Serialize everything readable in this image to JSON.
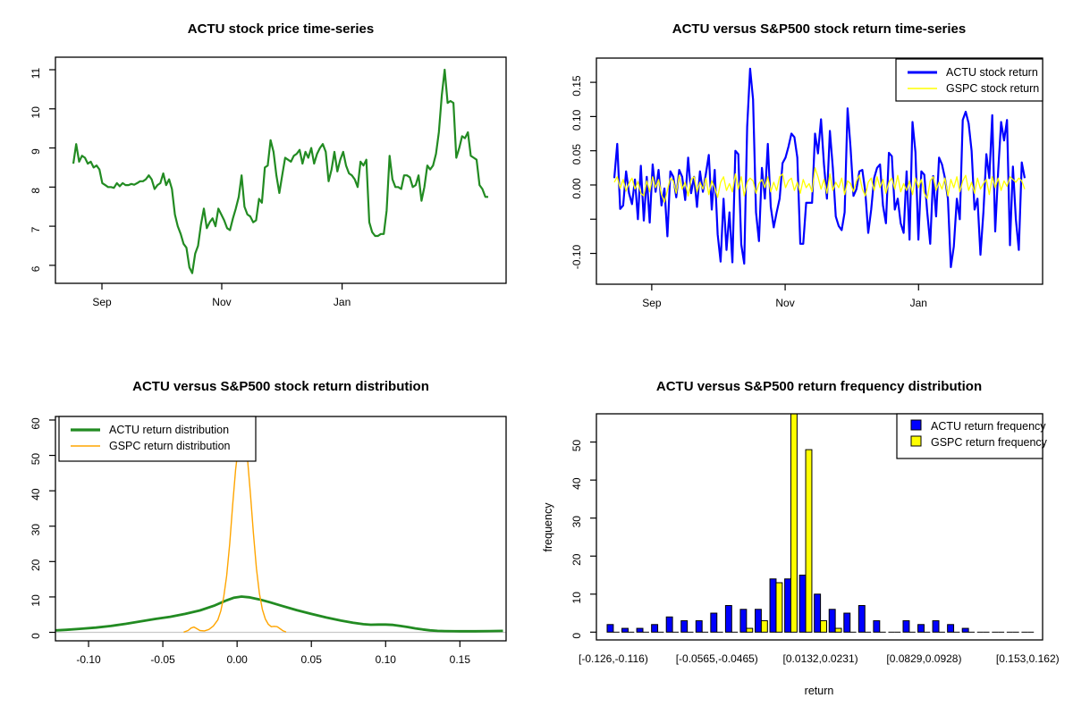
{
  "figure": {
    "background": "#FFFFFF"
  },
  "chart_data": [
    {
      "type": "line",
      "title": "ACTU stock price time-series",
      "x_tick_labels": [
        "Sep",
        "Nov",
        "Jan"
      ],
      "y_ticks": [
        6,
        7,
        8,
        9,
        10,
        11
      ],
      "ylim": [
        5.54,
        11.32
      ],
      "series": [
        {
          "name": "ACTU stock price",
          "color": "#228B22",
          "values": [
            8.6,
            9.1,
            8.65,
            8.8,
            8.75,
            8.6,
            8.65,
            8.5,
            8.55,
            8.45,
            8.1,
            8.05,
            8.0,
            8.0,
            7.98,
            8.1,
            8.02,
            8.1,
            8.05,
            8.05,
            8.08,
            8.06,
            8.1,
            8.15,
            8.15,
            8.2,
            8.3,
            8.2,
            7.95,
            8.05,
            8.1,
            8.35,
            8.05,
            8.2,
            7.95,
            7.3,
            7.0,
            6.8,
            6.55,
            6.45,
            5.95,
            5.8,
            6.3,
            6.5,
            7.05,
            7.45,
            6.95,
            7.1,
            7.2,
            7.0,
            7.45,
            7.3,
            7.15,
            6.95,
            6.9,
            7.2,
            7.45,
            7.75,
            8.3,
            7.5,
            7.3,
            7.25,
            7.1,
            7.15,
            7.7,
            7.6,
            8.5,
            8.55,
            9.2,
            8.9,
            8.3,
            7.85,
            8.3,
            8.75,
            8.7,
            8.65,
            8.8,
            8.85,
            8.95,
            8.6,
            8.9,
            8.75,
            9.0,
            8.6,
            8.85,
            9.0,
            9.1,
            8.9,
            8.15,
            8.45,
            8.9,
            8.4,
            8.7,
            8.9,
            8.55,
            8.35,
            8.3,
            8.2,
            8.0,
            8.65,
            8.55,
            8.7,
            7.1,
            6.85,
            6.75,
            6.75,
            6.8,
            6.8,
            7.4,
            8.8,
            8.2,
            8.0,
            8.0,
            7.95,
            8.3,
            8.3,
            8.25,
            8.0,
            8.05,
            8.3,
            7.65,
            8.0,
            8.55,
            8.45,
            8.55,
            8.85,
            9.4,
            10.35,
            11.0,
            10.15,
            10.2,
            10.15,
            8.75,
            9.0,
            9.3,
            9.25,
            9.4,
            8.8,
            8.75,
            8.7,
            8.05,
            7.95,
            7.75,
            7.75
          ]
        }
      ]
    },
    {
      "type": "line",
      "title": "ACTU versus S&P500 stock return time-series",
      "x_tick_labels": [
        "Sep",
        "Nov",
        "Jan"
      ],
      "y_tick_values": [
        0.15,
        0.1,
        0.05,
        0.0,
        -0.05,
        -0.1
      ],
      "y_tick_labels": [
        "0.15",
        "0.10",
        "0.05",
        "0.00",
        "",
        "-0.10"
      ],
      "ylim": [
        -0.145,
        0.1854
      ],
      "legend_position": "topright",
      "series": [
        {
          "name": "ACTU stock return",
          "color": "#0000FF",
          "values": [
            0.01,
            0.06,
            -0.035,
            -0.03,
            0.02,
            -0.012,
            -0.028,
            0.008,
            -0.05,
            0.028,
            -0.052,
            0.012,
            -0.055,
            0.03,
            -0.01,
            0.022,
            -0.03,
            -0.005,
            -0.075,
            0.02,
            0.012,
            -0.018,
            0.022,
            0.012,
            -0.022,
            0.04,
            -0.012,
            0.012,
            -0.032,
            0.02,
            -0.01,
            0.016,
            0.044,
            -0.036,
            0.022,
            -0.072,
            -0.112,
            -0.02,
            -0.095,
            -0.04,
            -0.113,
            0.05,
            0.045,
            -0.087,
            -0.115,
            0.085,
            0.17,
            0.125,
            -0.04,
            -0.082,
            0.025,
            -0.02,
            0.06,
            -0.032,
            -0.062,
            -0.04,
            -0.02,
            0.032,
            0.04,
            0.056,
            0.075,
            0.07,
            0.04,
            -0.086,
            -0.086,
            -0.026,
            -0.026,
            -0.026,
            0.075,
            0.046,
            0.096,
            0.03,
            -0.02,
            0.079,
            0.025,
            -0.046,
            -0.06,
            -0.066,
            -0.04,
            0.112,
            0.055,
            -0.016,
            -0.006,
            0.02,
            0.022,
            -0.01,
            -0.07,
            -0.036,
            0.01,
            0.025,
            0.03,
            -0.03,
            -0.056,
            0.047,
            0.042,
            -0.036,
            -0.02,
            -0.056,
            -0.07,
            0.02,
            -0.08,
            0.092,
            0.048,
            -0.08,
            0.02,
            0.015,
            -0.04,
            -0.086,
            0.013,
            -0.046,
            0.04,
            0.03,
            0.01,
            -0.02,
            -0.12,
            -0.09,
            -0.02,
            -0.05,
            0.095,
            0.107,
            0.09,
            0.05,
            -0.036,
            -0.02,
            -0.102,
            -0.04,
            0.045,
            0.01,
            0.102,
            -0.068,
            0.02,
            0.092,
            0.065,
            0.095,
            -0.088,
            0.027,
            -0.05,
            -0.095,
            0.033,
            0.01
          ]
        },
        {
          "name": "GSPC stock return",
          "color": "#FFFF00",
          "values": [
            0.004,
            0.012,
            -0.005,
            0.008,
            -0.009,
            0.003,
            0.01,
            -0.006,
            0.005,
            -0.012,
            -0.016,
            0.006,
            -0.01,
            0.012,
            -0.004,
            0.008,
            -0.014,
            -0.025,
            -0.008,
            0.01,
            0.006,
            -0.012,
            0.014,
            -0.006,
            0.004,
            -0.016,
            0.008,
            0.012,
            -0.01,
            0.004,
            -0.006,
            0.01,
            -0.014,
            0.006,
            -0.004,
            -0.018,
            0.004,
            0.012,
            -0.008,
            0.002,
            -0.01,
            0.016,
            -0.006,
            0.012,
            -0.016,
            0.004,
            0.01,
            0.006,
            -0.012,
            0.002,
            0.008,
            -0.004,
            0.012,
            -0.01,
            0.004,
            -0.008,
            0.012,
            0.016,
            -0.004,
            0.006,
            0.01,
            -0.008,
            0.004,
            -0.012,
            0.008,
            -0.004,
            0.002,
            -0.01,
            0.025,
            0.012,
            -0.006,
            0.008,
            -0.012,
            0.016,
            -0.008,
            0.004,
            -0.004,
            0.01,
            -0.014,
            0.006,
            0.002,
            -0.01,
            0.006,
            0.014,
            -0.006,
            -0.016,
            0.004,
            0.01,
            -0.008,
            0.012,
            -0.004,
            0.008,
            -0.012,
            0.004,
            0.01,
            -0.006,
            0.014,
            -0.01,
            0.002,
            -0.008,
            0.006,
            -0.014,
            0.01,
            -0.004,
            0.008,
            -0.012,
            -0.02,
            0.006,
            0.012,
            -0.008,
            0.004,
            -0.006,
            0.01,
            -0.016,
            0.008,
            -0.004,
            0.012,
            -0.01,
            0.006,
            0.014,
            -0.008,
            0.004,
            -0.012,
            0.01,
            -0.006,
            0.002,
            0.008,
            -0.014,
            0.012,
            -0.004,
            0.01,
            -0.008,
            0.006,
            -0.002,
            0.012,
            0.008,
            0.004,
            0.01,
            0.006,
            -0.006
          ]
        }
      ]
    },
    {
      "type": "line",
      "title": "ACTU versus S&P500 stock return distribution",
      "x_tick_values": [
        -0.1,
        -0.05,
        0.0,
        0.05,
        0.1,
        0.15
      ],
      "x_tick_labels": [
        "-0.10",
        "-0.05",
        "0.00",
        "0.05",
        "0.10",
        "0.15"
      ],
      "y_ticks": [
        0,
        10,
        20,
        30,
        40,
        50,
        60
      ],
      "xlim": [
        -0.1223,
        0.1811
      ],
      "ylim": [
        -2.4,
        61.0
      ],
      "zero_line_color": "#C8C8C8",
      "legend_position": "topleft",
      "series": [
        {
          "name": "ACTU return distribution",
          "color": "#228B22",
          "points": [
            [
              -0.122,
              0.55
            ],
            [
              -0.115,
              0.7
            ],
            [
              -0.105,
              1.0
            ],
            [
              -0.095,
              1.35
            ],
            [
              -0.085,
              1.8
            ],
            [
              -0.075,
              2.4
            ],
            [
              -0.065,
              3.1
            ],
            [
              -0.055,
              3.8
            ],
            [
              -0.045,
              4.4
            ],
            [
              -0.035,
              5.2
            ],
            [
              -0.025,
              6.2
            ],
            [
              -0.015,
              7.6
            ],
            [
              -0.008,
              8.9
            ],
            [
              -0.002,
              9.8
            ],
            [
              0.003,
              10.1
            ],
            [
              0.008,
              9.9
            ],
            [
              0.015,
              9.3
            ],
            [
              0.022,
              8.5
            ],
            [
              0.03,
              7.5
            ],
            [
              0.04,
              6.3
            ],
            [
              0.05,
              5.2
            ],
            [
              0.06,
              4.2
            ],
            [
              0.07,
              3.3
            ],
            [
              0.078,
              2.7
            ],
            [
              0.085,
              2.3
            ],
            [
              0.09,
              2.15
            ],
            [
              0.095,
              2.2
            ],
            [
              0.1,
              2.2
            ],
            [
              0.105,
              2.1
            ],
            [
              0.11,
              1.8
            ],
            [
              0.115,
              1.5
            ],
            [
              0.12,
              1.1
            ],
            [
              0.125,
              0.8
            ],
            [
              0.13,
              0.55
            ],
            [
              0.135,
              0.4
            ],
            [
              0.14,
              0.35
            ],
            [
              0.15,
              0.3
            ],
            [
              0.16,
              0.3
            ],
            [
              0.17,
              0.35
            ],
            [
              0.179,
              0.4
            ]
          ]
        },
        {
          "name": "GSPC return distribution",
          "color": "#FFA500",
          "points": [
            [
              -0.036,
              0.05
            ],
            [
              -0.033,
              0.5
            ],
            [
              -0.031,
              1.2
            ],
            [
              -0.029,
              1.5
            ],
            [
              -0.027,
              1.0
            ],
            [
              -0.025,
              0.5
            ],
            [
              -0.022,
              0.4
            ],
            [
              -0.019,
              0.8
            ],
            [
              -0.016,
              1.8
            ],
            [
              -0.013,
              3.5
            ],
            [
              -0.011,
              6
            ],
            [
              -0.009,
              10
            ],
            [
              -0.007,
              16
            ],
            [
              -0.005,
              25
            ],
            [
              -0.003,
              36
            ],
            [
              -0.001,
              46
            ],
            [
              0.001,
              53
            ],
            [
              0.003,
              56.5
            ],
            [
              0.005,
              55
            ],
            [
              0.007,
              49
            ],
            [
              0.009,
              39
            ],
            [
              0.011,
              28
            ],
            [
              0.013,
              18
            ],
            [
              0.015,
              11
            ],
            [
              0.017,
              6.5
            ],
            [
              0.019,
              3.8
            ],
            [
              0.021,
              2.3
            ],
            [
              0.023,
              1.6
            ],
            [
              0.025,
              1.7
            ],
            [
              0.027,
              1.6
            ],
            [
              0.029,
              1.0
            ],
            [
              0.031,
              0.4
            ],
            [
              0.033,
              0.1
            ]
          ]
        }
      ]
    },
    {
      "type": "bar",
      "title": "ACTU versus S&P500 return frequency distribution",
      "xlabel": "return",
      "ylabel": "frequency",
      "y_ticks": [
        0,
        10,
        20,
        30,
        40,
        50
      ],
      "bin_labels": [
        "[-0.126,-0.116)",
        "[-0.0565,-0.0465)",
        "[0.0132,0.0231)",
        "[0.0829,0.0928)",
        "[0.153,0.162)"
      ],
      "bin_label_indices": [
        0,
        7,
        14,
        21,
        28
      ],
      "n_bins": 29,
      "legend_position": "topright",
      "series": [
        {
          "name": "ACTU return frequency",
          "color": "#0000FF",
          "values": [
            2,
            1,
            1,
            2,
            4,
            3,
            3,
            5,
            7,
            6,
            6,
            14,
            14,
            15,
            10,
            6,
            5,
            7,
            3,
            0,
            3,
            2,
            3,
            2,
            1,
            0,
            0,
            0,
            0
          ]
        },
        {
          "name": "GSPC return frequency",
          "color": "#FFFF00",
          "values": [
            0,
            0,
            0,
            0,
            0,
            0,
            0,
            0,
            0,
            1,
            3,
            13,
            65,
            48,
            3,
            1,
            0,
            0,
            0,
            0,
            0,
            0,
            0,
            0,
            0,
            0,
            0,
            0,
            0
          ]
        }
      ]
    }
  ]
}
